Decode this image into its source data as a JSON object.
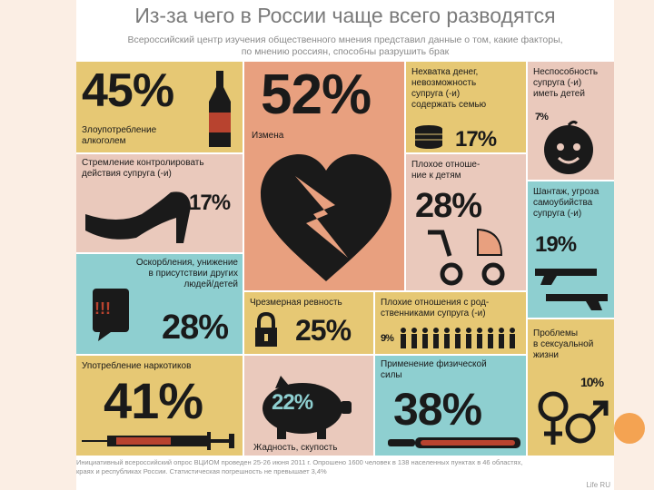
{
  "title": "Из-за чего в России чаще всего разводятся",
  "subtitle_lines": [
    "Всероссийский центр изучения общественного мнения представил данные о том, какие факторы,",
    "по мнению россиян, способны разрушить брак"
  ],
  "chart_data": {
    "type": "table",
    "unit": "%",
    "items": [
      {
        "label": "Злоупотребление алкоголем",
        "value": 45
      },
      {
        "label": "Измена",
        "value": 52
      },
      {
        "label": "Нехватка денег, невозможность супруга (-и) содержать семью",
        "value": 17
      },
      {
        "label": "Неспособность супруга (-и) иметь детей",
        "value": 7
      },
      {
        "label": "Стремление контролировать действия супруга (-и)",
        "value": 17
      },
      {
        "label": "Плохое отношение к детям",
        "value": 28
      },
      {
        "label": "Шантаж, угроза самоубийства супруга (-и)",
        "value": 19
      },
      {
        "label": "Оскорбления, унижение в присутствии других людей/детей",
        "value": 28
      },
      {
        "label": "Чрезмерная ревность",
        "value": 25
      },
      {
        "label": "Плохие отношения с родственниками супруга (-и)",
        "value": 9
      },
      {
        "label": "Употребление наркотиков",
        "value": 41
      },
      {
        "label": "Жадность, скупость",
        "value": 22
      },
      {
        "label": "Применение физической силы",
        "value": 38
      },
      {
        "label": "Проблемы в сексуальной жизни",
        "value": 10
      }
    ]
  },
  "cells": {
    "alcohol": {
      "pct": "45%",
      "label_lines": [
        "Злоупотребление",
        "алкоголем"
      ]
    },
    "cheating": {
      "pct": "52%",
      "label": "Измена"
    },
    "money": {
      "pct": "17%",
      "label_lines": [
        "Нехватка денег,",
        "невозможность",
        "супруга (-и)",
        "содержать семью"
      ]
    },
    "infertility": {
      "pct": "7%",
      "label_lines": [
        "Неспособность",
        "супруга (-и)",
        "иметь детей"
      ]
    },
    "control": {
      "pct": "17%",
      "label_lines": [
        "Стремление контролировать",
        "действия супруга (-и)"
      ]
    },
    "children": {
      "pct": "28%",
      "label_lines": [
        "Плохое отноше-",
        "ние к детям"
      ]
    },
    "blackmail": {
      "pct": "19%",
      "label_lines": [
        "Шантаж, угроза",
        "самоубийства",
        "супруга (-и)"
      ]
    },
    "insults": {
      "pct": "28%",
      "label_lines": [
        "Оскорбления, унижение",
        "в присутствии других",
        "людей/детей"
      ],
      "marks": "!!!"
    },
    "jealousy": {
      "pct": "25%",
      "label": "Чрезмерная ревность"
    },
    "relatives": {
      "pct": "9%",
      "label_lines": [
        "Плохие отношения с род-",
        "ственниками супруга (-и)"
      ]
    },
    "drugs": {
      "pct": "41%",
      "label": "Употребление наркотиков"
    },
    "greed": {
      "pct": "22%",
      "label": "Жадность, скупость"
    },
    "violence": {
      "pct": "38%",
      "label_lines": [
        "Применение физической",
        "силы"
      ]
    },
    "sex": {
      "pct": "10%",
      "label_lines": [
        "Проблемы",
        "в сексуальной",
        "жизни"
      ]
    }
  },
  "footer_lines": [
    "Инициативный всероссийский опрос ВЦИОМ проведен 25-26 июня 2011 г. Опрошено 1600 человек в 138 населенных пунктах в 46 областях,",
    "краях и республиках России. Статистическая погрешность не превышает 3,4%"
  ],
  "watermark": "Life RU",
  "colors": {
    "tan": "#e6c874",
    "teal": "#8ecfd0",
    "pink": "#eac9bc",
    "coral": "#e8a07f",
    "dark": "#1a1a1a"
  }
}
